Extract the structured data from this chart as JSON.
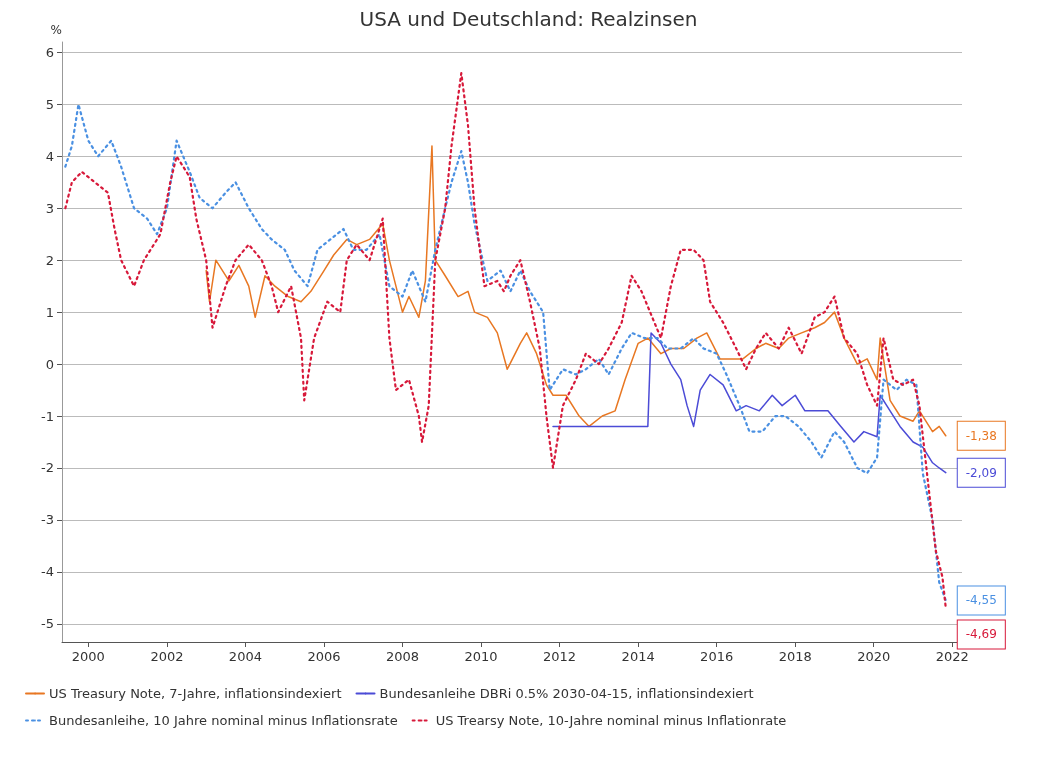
{
  "chart_data": {
    "type": "line",
    "title": "USA und Deutschland: Realzinsen",
    "ylabel": "%",
    "xlim": [
      "1999-05",
      "2022-04"
    ],
    "ylim": [
      -5.35,
      6.2
    ],
    "xticks": [
      "2000",
      "2002",
      "2004",
      "2006",
      "2008",
      "2010",
      "2012",
      "2014",
      "2016",
      "2018",
      "2020",
      "2022"
    ],
    "yticks": [
      -5,
      -4,
      -3,
      -2,
      -1,
      0,
      1,
      2,
      3,
      4,
      5,
      6
    ],
    "grid": "y",
    "legend": "bottom",
    "series": [
      {
        "name": "US Treasury Note, 7-Jahre, inflationsindexiert",
        "color": "#e87722",
        "line_style": "solid",
        "x": [
          "2003-01",
          "2003-02",
          "2003-04",
          "2003-08",
          "2003-11",
          "2004-02",
          "2004-04",
          "2004-07",
          "2004-10",
          "2005-02",
          "2005-06",
          "2005-09",
          "2006-01",
          "2006-04",
          "2006-08",
          "2006-11",
          "2007-03",
          "2007-07",
          "2007-09",
          "2008-01",
          "2008-03",
          "2008-06",
          "2008-08",
          "2008-10",
          "2008-11",
          "2009-02",
          "2009-06",
          "2009-09",
          "2009-11",
          "2010-03",
          "2010-06",
          "2010-09",
          "2011-01",
          "2011-03",
          "2011-06",
          "2011-09",
          "2011-11",
          "2012-03",
          "2012-07",
          "2012-10",
          "2013-02",
          "2013-06",
          "2013-09",
          "2014-01",
          "2014-04",
          "2014-08",
          "2014-11",
          "2015-03",
          "2015-07",
          "2015-10",
          "2016-02",
          "2016-06",
          "2016-09",
          "2017-01",
          "2017-04",
          "2017-08",
          "2017-11",
          "2018-03",
          "2018-07",
          "2018-10",
          "2019-01",
          "2019-04",
          "2019-08",
          "2019-11",
          "2020-02",
          "2020-03",
          "2020-06",
          "2020-09",
          "2021-01",
          "2021-03",
          "2021-07",
          "2021-09",
          "2021-11"
        ],
        "values": [
          1.8,
          1.2,
          2.0,
          1.6,
          1.9,
          1.5,
          0.9,
          1.7,
          1.5,
          1.3,
          1.2,
          1.4,
          1.8,
          2.1,
          2.4,
          2.3,
          2.4,
          2.7,
          2.0,
          1.0,
          1.3,
          0.9,
          1.6,
          4.2,
          2.0,
          1.7,
          1.3,
          1.4,
          1.0,
          0.9,
          0.6,
          -0.1,
          0.4,
          0.6,
          0.2,
          -0.4,
          -0.6,
          -0.6,
          -1.0,
          -1.2,
          -1.0,
          -0.9,
          -0.3,
          0.4,
          0.5,
          0.2,
          0.3,
          0.3,
          0.5,
          0.6,
          0.1,
          0.1,
          0.1,
          0.3,
          0.4,
          0.3,
          0.5,
          0.6,
          0.7,
          0.8,
          1.0,
          0.5,
          0.0,
          0.1,
          -0.3,
          0.5,
          -0.7,
          -1.0,
          -1.1,
          -0.9,
          -1.3,
          -1.2,
          -1.38
        ],
        "value_labels": [
          null,
          null,
          null,
          null,
          null,
          null,
          null,
          null,
          null,
          null,
          null,
          null,
          null,
          null,
          null,
          null,
          null,
          null,
          null,
          null,
          null,
          null,
          null,
          null,
          null,
          null,
          null,
          null,
          null,
          null,
          null,
          null,
          null,
          null,
          null,
          null,
          null,
          null,
          null,
          null,
          null,
          null,
          null,
          null,
          null,
          null,
          null,
          null,
          null,
          null,
          null,
          null,
          null,
          null,
          null,
          null,
          null,
          null,
          null,
          null,
          null,
          null,
          null,
          null,
          null,
          null,
          null,
          null,
          null,
          null,
          null,
          null,
          "-1,38"
        ]
      },
      {
        "name": "Bundesanleihe DBRi 0.5% 2030-04-15, inflationsindexiert",
        "color": "#4b4bd6",
        "line_style": "solid",
        "x": [
          "2011-11",
          "2014-04",
          "2014-05",
          "2014-08",
          "2014-11",
          "2015-02",
          "2015-04",
          "2015-06",
          "2015-08",
          "2015-11",
          "2016-03",
          "2016-07",
          "2016-10",
          "2017-02",
          "2017-06",
          "2017-09",
          "2018-01",
          "2018-04",
          "2018-08",
          "2018-11",
          "2019-03",
          "2019-07",
          "2019-10",
          "2020-02",
          "2020-03",
          "2020-06",
          "2020-09",
          "2021-01",
          "2021-04",
          "2021-07",
          "2021-09",
          "2021-11"
        ],
        "values": [
          -1.2,
          -1.2,
          0.6,
          0.4,
          0.0,
          -0.3,
          -0.8,
          -1.2,
          -0.5,
          -0.2,
          -0.4,
          -0.9,
          -0.8,
          -0.9,
          -0.6,
          -0.8,
          -0.6,
          -0.9,
          -0.9,
          -0.9,
          -1.2,
          -1.5,
          -1.3,
          -1.4,
          -0.6,
          -0.9,
          -1.2,
          -1.5,
          -1.6,
          -1.9,
          -2.0,
          -2.09
        ],
        "value_labels": [
          null,
          null,
          null,
          null,
          null,
          null,
          null,
          null,
          null,
          null,
          null,
          null,
          null,
          null,
          null,
          null,
          null,
          null,
          null,
          null,
          null,
          null,
          null,
          null,
          null,
          null,
          null,
          null,
          null,
          null,
          null,
          "-2,09"
        ]
      },
      {
        "name": "Bundesanleihe, 10 Jahre nominal minus Inflationsrate",
        "color": "#4a90e2",
        "line_style": "dotted",
        "x": [
          "1999-06",
          "1999-08",
          "1999-10",
          "2000-01",
          "2000-04",
          "2000-08",
          "2000-11",
          "2001-03",
          "2001-07",
          "2001-10",
          "2002-01",
          "2002-04",
          "2002-08",
          "2002-11",
          "2003-03",
          "2003-07",
          "2003-10",
          "2004-02",
          "2004-06",
          "2004-09",
          "2005-01",
          "2005-04",
          "2005-08",
          "2005-11",
          "2006-03",
          "2006-07",
          "2006-10",
          "2007-02",
          "2007-06",
          "2007-09",
          "2008-01",
          "2008-04",
          "2008-08",
          "2008-11",
          "2009-02",
          "2009-04",
          "2009-07",
          "2009-09",
          "2009-11",
          "2010-03",
          "2010-07",
          "2010-10",
          "2011-01",
          "2011-04",
          "2011-08",
          "2011-10",
          "2012-02",
          "2012-06",
          "2012-09",
          "2013-01",
          "2013-04",
          "2013-08",
          "2013-11",
          "2014-03",
          "2014-07",
          "2014-10",
          "2015-02",
          "2015-06",
          "2015-09",
          "2016-01",
          "2016-04",
          "2016-08",
          "2016-11",
          "2017-03",
          "2017-07",
          "2017-10",
          "2018-02",
          "2018-06",
          "2018-09",
          "2019-01",
          "2019-04",
          "2019-08",
          "2019-11",
          "2020-02",
          "2020-04",
          "2020-08",
          "2020-11",
          "2021-02",
          "2021-04",
          "2021-07",
          "2021-09",
          "2021-11"
        ],
        "values": [
          3.8,
          4.2,
          5.0,
          4.3,
          4.0,
          4.3,
          3.8,
          3.0,
          2.8,
          2.5,
          3.0,
          4.3,
          3.7,
          3.2,
          3.0,
          3.3,
          3.5,
          3.0,
          2.6,
          2.4,
          2.2,
          1.8,
          1.5,
          2.2,
          2.4,
          2.6,
          2.2,
          2.2,
          2.5,
          1.5,
          1.3,
          1.8,
          1.2,
          2.2,
          3.0,
          3.5,
          4.1,
          3.5,
          2.7,
          1.6,
          1.8,
          1.4,
          1.8,
          1.4,
          1.0,
          -0.5,
          -0.1,
          -0.2,
          -0.1,
          0.1,
          -0.2,
          0.3,
          0.6,
          0.5,
          0.5,
          0.3,
          0.3,
          0.5,
          0.3,
          0.2,
          -0.2,
          -0.8,
          -1.3,
          -1.3,
          -1.0,
          -1.0,
          -1.2,
          -1.5,
          -1.8,
          -1.3,
          -1.5,
          -2.0,
          -2.1,
          -1.8,
          -0.3,
          -0.5,
          -0.3,
          -0.4,
          -2.1,
          -3.0,
          -4.2,
          -4.55
        ],
        "value_labels": [
          null,
          null,
          null,
          null,
          null,
          null,
          null,
          null,
          null,
          null,
          null,
          null,
          null,
          null,
          null,
          null,
          null,
          null,
          null,
          null,
          null,
          null,
          null,
          null,
          null,
          null,
          null,
          null,
          null,
          null,
          null,
          null,
          null,
          null,
          null,
          null,
          null,
          null,
          null,
          null,
          null,
          null,
          null,
          null,
          null,
          null,
          null,
          null,
          null,
          null,
          null,
          null,
          null,
          null,
          null,
          null,
          null,
          null,
          null,
          null,
          null,
          null,
          null,
          null,
          null,
          null,
          null,
          null,
          null,
          null,
          null,
          null,
          null,
          null,
          null,
          null,
          null,
          null,
          null,
          null,
          null,
          "-4,55"
        ]
      },
      {
        "name": "US Trearsy Note, 10-Jahre nominal minus Inflationrate",
        "color": "#d7193a",
        "line_style": "dotted",
        "x": [
          "1999-06",
          "1999-08",
          "1999-11",
          "2000-03",
          "2000-07",
          "2000-09",
          "2000-11",
          "2001-03",
          "2001-06",
          "2001-09",
          "2001-11",
          "2002-02",
          "2002-04",
          "2002-08",
          "2002-10",
          "2003-01",
          "2003-03",
          "2003-07",
          "2003-10",
          "2004-02",
          "2004-06",
          "2004-09",
          "2004-11",
          "2005-03",
          "2005-06",
          "2005-07",
          "2005-10",
          "2006-02",
          "2006-06",
          "2006-08",
          "2006-11",
          "2007-03",
          "2007-07",
          "2007-09",
          "2007-11",
          "2008-03",
          "2008-06",
          "2008-07",
          "2008-09",
          "2008-11",
          "2009-02",
          "2009-04",
          "2009-07",
          "2009-09",
          "2009-11",
          "2010-02",
          "2010-06",
          "2010-08",
          "2010-10",
          "2011-01",
          "2011-04",
          "2011-07",
          "2011-09",
          "2011-11",
          "2012-02",
          "2012-06",
          "2012-09",
          "2013-01",
          "2013-04",
          "2013-08",
          "2013-11",
          "2014-02",
          "2014-06",
          "2014-08",
          "2014-11",
          "2015-02",
          "2015-06",
          "2015-09",
          "2015-11",
          "2016-03",
          "2016-07",
          "2016-10",
          "2017-01",
          "2017-04",
          "2017-08",
          "2017-11",
          "2018-03",
          "2018-07",
          "2018-10",
          "2019-01",
          "2019-04",
          "2019-08",
          "2019-11",
          "2020-02",
          "2020-04",
          "2020-07",
          "2020-10",
          "2021-01",
          "2021-03",
          "2021-06",
          "2021-08",
          "2021-10",
          "2021-11"
        ],
        "values": [
          3.0,
          3.5,
          3.7,
          3.5,
          3.3,
          2.6,
          2.0,
          1.5,
          2.0,
          2.3,
          2.5,
          3.5,
          4.0,
          3.6,
          2.8,
          2.0,
          0.7,
          1.5,
          2.0,
          2.3,
          2.0,
          1.5,
          1.0,
          1.5,
          0.5,
          -0.7,
          0.5,
          1.2,
          1.0,
          2.0,
          2.3,
          2.0,
          2.8,
          0.5,
          -0.5,
          -0.3,
          -1.0,
          -1.5,
          -0.8,
          2.0,
          3.0,
          4.2,
          5.6,
          4.6,
          3.0,
          1.5,
          1.6,
          1.4,
          1.7,
          2.0,
          1.2,
          0.3,
          -1.0,
          -2.0,
          -0.8,
          -0.3,
          0.2,
          0.0,
          0.3,
          0.8,
          1.7,
          1.4,
          0.8,
          0.5,
          1.5,
          2.2,
          2.2,
          2.0,
          1.2,
          0.8,
          0.3,
          -0.1,
          0.3,
          0.6,
          0.3,
          0.7,
          0.2,
          0.9,
          1.0,
          1.3,
          0.5,
          0.2,
          -0.4,
          -0.8,
          0.5,
          -0.3,
          -0.4,
          -0.3,
          -0.8,
          -2.5,
          -3.6,
          -4.1,
          -4.69
        ],
        "value_labels": [
          null,
          null,
          null,
          null,
          null,
          null,
          null,
          null,
          null,
          null,
          null,
          null,
          null,
          null,
          null,
          null,
          null,
          null,
          null,
          null,
          null,
          null,
          null,
          null,
          null,
          null,
          null,
          null,
          null,
          null,
          null,
          null,
          null,
          null,
          null,
          null,
          null,
          null,
          null,
          null,
          null,
          null,
          null,
          null,
          null,
          null,
          null,
          null,
          null,
          null,
          null,
          null,
          null,
          null,
          null,
          null,
          null,
          null,
          null,
          null,
          null,
          null,
          null,
          null,
          null,
          null,
          null,
          null,
          null,
          null,
          null,
          null,
          null,
          null,
          null,
          null,
          null,
          null,
          null,
          null,
          null,
          null,
          null,
          null,
          null,
          null,
          null,
          null,
          null,
          null,
          null,
          null,
          "-4,69"
        ]
      }
    ]
  }
}
